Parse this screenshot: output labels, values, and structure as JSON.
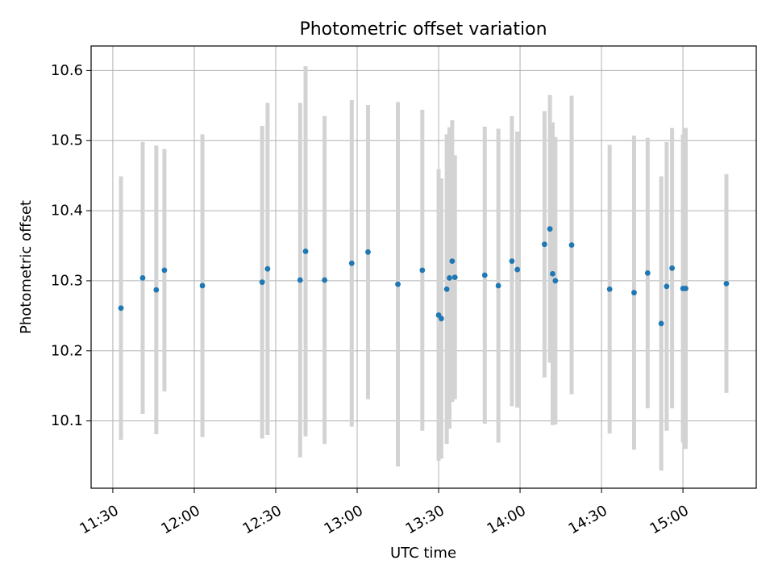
{
  "chart_data": {
    "type": "scatter",
    "title": "Photometric offset variation",
    "xlabel": "UTC time",
    "ylabel": "Photometric offset",
    "x_ticks": [
      "11:30",
      "12:00",
      "12:30",
      "13:00",
      "13:30",
      "14:00",
      "14:30",
      "15:00"
    ],
    "y_ticks": [
      "10.1",
      "10.2",
      "10.3",
      "10.4",
      "10.5",
      "10.6"
    ],
    "xlim": [
      "11:22",
      "15:27"
    ],
    "ylim": [
      10.004,
      10.635
    ],
    "grid": true,
    "errorbar_color": "#d3d3d3",
    "marker_color": "#1f77b4",
    "points": [
      {
        "x": "11:33",
        "y": 10.261,
        "err": 0.188
      },
      {
        "x": "11:41",
        "y": 10.304,
        "err": 0.194
      },
      {
        "x": "11:46",
        "y": 10.287,
        "err": 0.206
      },
      {
        "x": "11:49",
        "y": 10.315,
        "err": 0.173
      },
      {
        "x": "12:03",
        "y": 10.293,
        "err": 0.216
      },
      {
        "x": "12:25",
        "y": 10.298,
        "err": 0.223
      },
      {
        "x": "12:27",
        "y": 10.317,
        "err": 0.237
      },
      {
        "x": "12:39",
        "y": 10.301,
        "err": 0.253
      },
      {
        "x": "12:41",
        "y": 10.342,
        "err": 0.264
      },
      {
        "x": "12:48",
        "y": 10.301,
        "err": 0.234
      },
      {
        "x": "12:58",
        "y": 10.325,
        "err": 0.233
      },
      {
        "x": "13:04",
        "y": 10.341,
        "err": 0.21
      },
      {
        "x": "13:15",
        "y": 10.295,
        "err": 0.26
      },
      {
        "x": "13:24",
        "y": 10.315,
        "err": 0.229
      },
      {
        "x": "13:30",
        "y": 10.251,
        "err": 0.208
      },
      {
        "x": "13:31",
        "y": 10.246,
        "err": 0.2
      },
      {
        "x": "13:33",
        "y": 10.288,
        "err": 0.221
      },
      {
        "x": "13:34",
        "y": 10.304,
        "err": 0.215
      },
      {
        "x": "13:35",
        "y": 10.328,
        "err": 0.201
      },
      {
        "x": "13:36",
        "y": 10.305,
        "err": 0.174
      },
      {
        "x": "13:47",
        "y": 10.308,
        "err": 0.212
      },
      {
        "x": "13:52",
        "y": 10.293,
        "err": 0.224
      },
      {
        "x": "13:57",
        "y": 10.328,
        "err": 0.207
      },
      {
        "x": "13:59",
        "y": 10.316,
        "err": 0.197
      },
      {
        "x": "14:09",
        "y": 10.352,
        "err": 0.19
      },
      {
        "x": "14:11",
        "y": 10.374,
        "err": 0.191
      },
      {
        "x": "14:12",
        "y": 10.31,
        "err": 0.216
      },
      {
        "x": "14:13",
        "y": 10.3,
        "err": 0.205
      },
      {
        "x": "14:19",
        "y": 10.351,
        "err": 0.213
      },
      {
        "x": "14:33",
        "y": 10.288,
        "err": 0.206
      },
      {
        "x": "14:42",
        "y": 10.283,
        "err": 0.224
      },
      {
        "x": "14:47",
        "y": 10.311,
        "err": 0.193
      },
      {
        "x": "14:52",
        "y": 10.239,
        "err": 0.21
      },
      {
        "x": "14:54",
        "y": 10.292,
        "err": 0.206
      },
      {
        "x": "14:56",
        "y": 10.318,
        "err": 0.2
      },
      {
        "x": "15:00",
        "y": 10.289,
        "err": 0.22
      },
      {
        "x": "15:01",
        "y": 10.289,
        "err": 0.229
      },
      {
        "x": "15:16",
        "y": 10.296,
        "err": 0.156
      }
    ]
  }
}
